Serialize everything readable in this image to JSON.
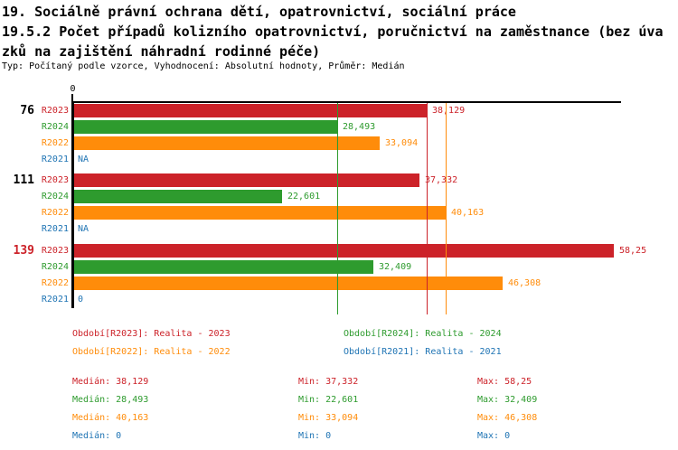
{
  "title": {
    "lines": [
      "19. Sociálně právní ochrana dětí, opatrovnictví, sociální práce",
      "19.5.2 Počet případů kolizního opatrovnictví, poručnictví na zaměstnance (bez úva",
      "zků na zajištění náhradní rodinné péče)"
    ],
    "meta": "Typ: Počítaný podle vzorce, Vyhodnocení: Absolutní hodnoty, Průměr: Medián"
  },
  "colors": {
    "r2023": "#cc2229",
    "r2024": "#2e9b2e",
    "r2022": "#ff8c0a",
    "r2021": "#1f74b4",
    "axis": "#000000",
    "background": "#ffffff"
  },
  "chart_data": {
    "type": "bar",
    "orientation": "horizontal",
    "grid": "median-lines-only",
    "value_axis": {
      "origin_label": "0",
      "min": 0,
      "max": 58.95
    },
    "average_type": "Medián",
    "stats_labels": {
      "median": "Medián",
      "min": "Min",
      "max": "Max"
    },
    "series": [
      {
        "id": "R2023",
        "label": "R2023",
        "color_key": "r2023",
        "legend": "Období[R2023]: Realita - 2023",
        "median": 38.129,
        "min": 37.332,
        "max": 58.25,
        "median_label": "38,129",
        "min_label": "37,332",
        "max_label": "58,25"
      },
      {
        "id": "R2024",
        "label": "R2024",
        "color_key": "r2024",
        "legend": "Období[R2024]: Realita - 2024",
        "median": 28.493,
        "min": 22.601,
        "max": 32.409,
        "median_label": "28,493",
        "min_label": "22,601",
        "max_label": "32,409"
      },
      {
        "id": "R2022",
        "label": "R2022",
        "color_key": "r2022",
        "legend": "Období[R2022]: Realita - 2022",
        "median": 40.163,
        "min": 33.094,
        "max": 46.308,
        "median_label": "40,163",
        "min_label": "33,094",
        "max_label": "46,308"
      },
      {
        "id": "R2021",
        "label": "R2021",
        "color_key": "r2021",
        "legend": "Období[R2021]: Realita - 2021",
        "median": 0,
        "min": 0,
        "max": 0,
        "median_label": "0",
        "min_label": "0",
        "max_label": "0"
      }
    ],
    "groups": [
      {
        "label": "76",
        "label_color_key": "axis",
        "bars": [
          {
            "series": "R2023",
            "value": 38.129,
            "display": "38,129"
          },
          {
            "series": "R2024",
            "value": 28.493,
            "display": "28,493"
          },
          {
            "series": "R2022",
            "value": 33.094,
            "display": "33,094"
          },
          {
            "series": "R2021",
            "value": null,
            "display": "NA"
          }
        ]
      },
      {
        "label": "111",
        "label_color_key": "axis",
        "bars": [
          {
            "series": "R2023",
            "value": 37.332,
            "display": "37,332"
          },
          {
            "series": "R2024",
            "value": 22.601,
            "display": "22,601"
          },
          {
            "series": "R2022",
            "value": 40.163,
            "display": "40,163"
          },
          {
            "series": "R2021",
            "value": null,
            "display": "NA"
          }
        ]
      },
      {
        "label": "139",
        "label_color_key": "r2023",
        "bars": [
          {
            "series": "R2023",
            "value": 58.25,
            "display": "58,25"
          },
          {
            "series": "R2024",
            "value": 32.409,
            "display": "32,409"
          },
          {
            "series": "R2022",
            "value": 46.308,
            "display": "46,308"
          },
          {
            "series": "R2021",
            "value": 0,
            "display": "0"
          }
        ]
      }
    ],
    "median_lines": [
      {
        "series": "R2023",
        "value": 38.129
      },
      {
        "series": "R2024",
        "value": 28.493
      },
      {
        "series": "R2022",
        "value": 40.163
      },
      {
        "series": "R2021",
        "value": 0
      }
    ]
  }
}
